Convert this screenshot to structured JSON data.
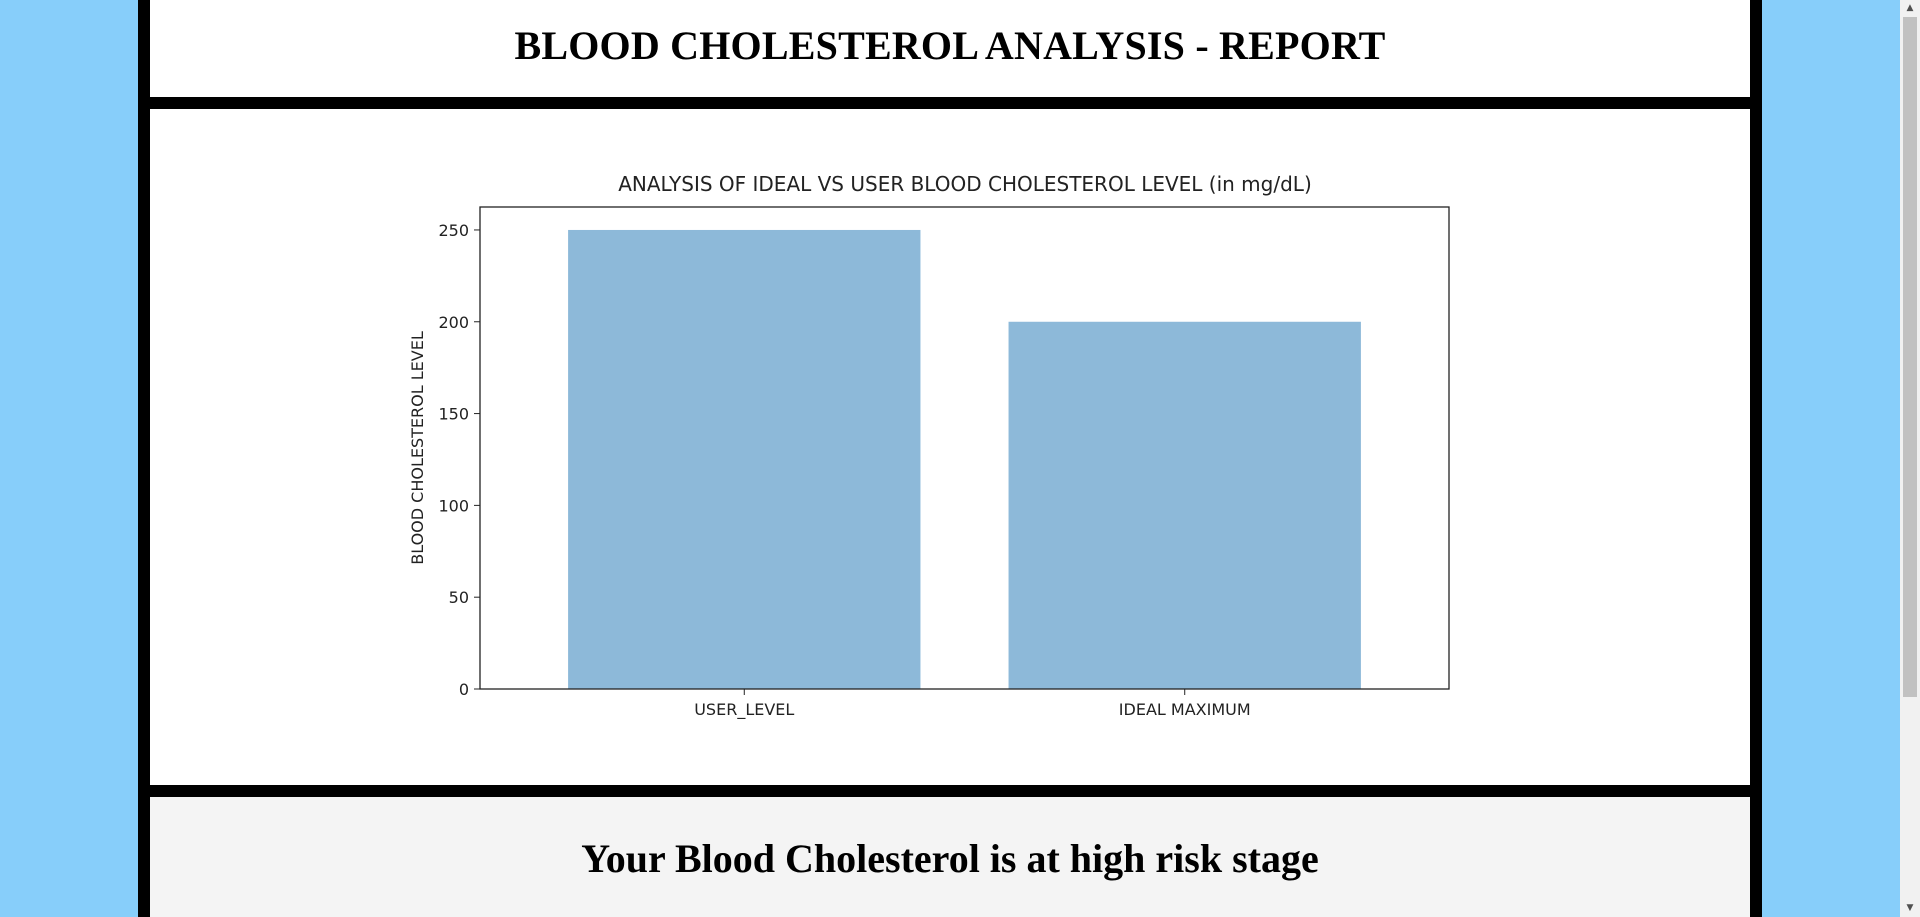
{
  "header": {
    "title": "BLOOD CHOLESTEROL ANALYSIS - REPORT"
  },
  "result": {
    "message": "Your Blood Cholesterol is at high risk stage"
  },
  "chart_data": {
    "type": "bar",
    "title": "ANALYSIS OF IDEAL VS USER BLOOD CHOLESTEROL LEVEL (in mg/dL)",
    "xlabel": "",
    "ylabel": "BLOOD CHOLESTEROL LEVEL",
    "categories": [
      "USER_LEVEL",
      "IDEAL MAXIMUM"
    ],
    "values": [
      250,
      200
    ],
    "yticks": [
      0,
      50,
      100,
      150,
      200,
      250
    ],
    "ylim": [
      0,
      262.5
    ],
    "bar_color": "#8db9d9",
    "grid": false,
    "legend": "none"
  },
  "colors": {
    "background": "#87cefa",
    "frame": "#000000",
    "result_panel": "#f4f4f4"
  },
  "scrollbar": {
    "up_icon": "scroll-up-arrow-icon",
    "down_icon": "scroll-down-arrow-icon"
  }
}
